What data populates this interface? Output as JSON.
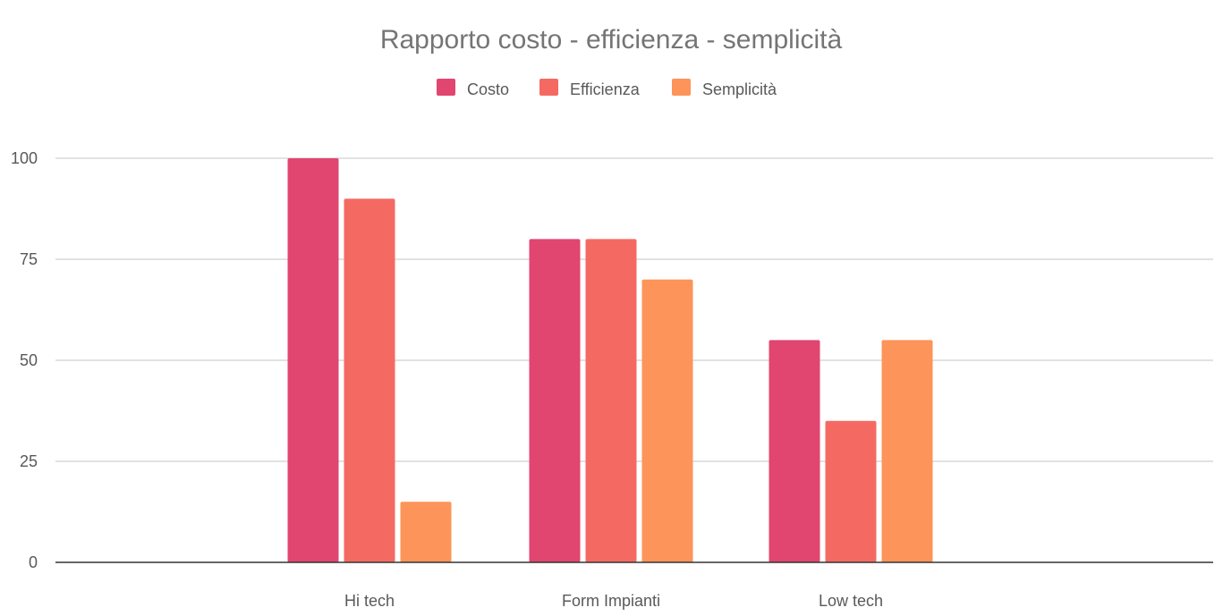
{
  "chart_data": {
    "type": "bar",
    "title": "Rapporto costo - efficienza - semplicità",
    "xlabel": "",
    "ylabel": "",
    "categories": [
      "Hi tech",
      "Form Impianti",
      "Low tech"
    ],
    "series": [
      {
        "name": "Costo",
        "color": "#e04670",
        "values": [
          100,
          80,
          55
        ]
      },
      {
        "name": "Efficienza",
        "color": "#f46a62",
        "values": [
          90,
          80,
          35
        ]
      },
      {
        "name": "Semplicità",
        "color": "#fd9459",
        "values": [
          15,
          70,
          55
        ]
      }
    ],
    "ylim": [
      0,
      100
    ],
    "yticks": [
      "0",
      "25",
      "50",
      "75",
      "100"
    ],
    "grid": true,
    "legend_position": "top-center"
  }
}
